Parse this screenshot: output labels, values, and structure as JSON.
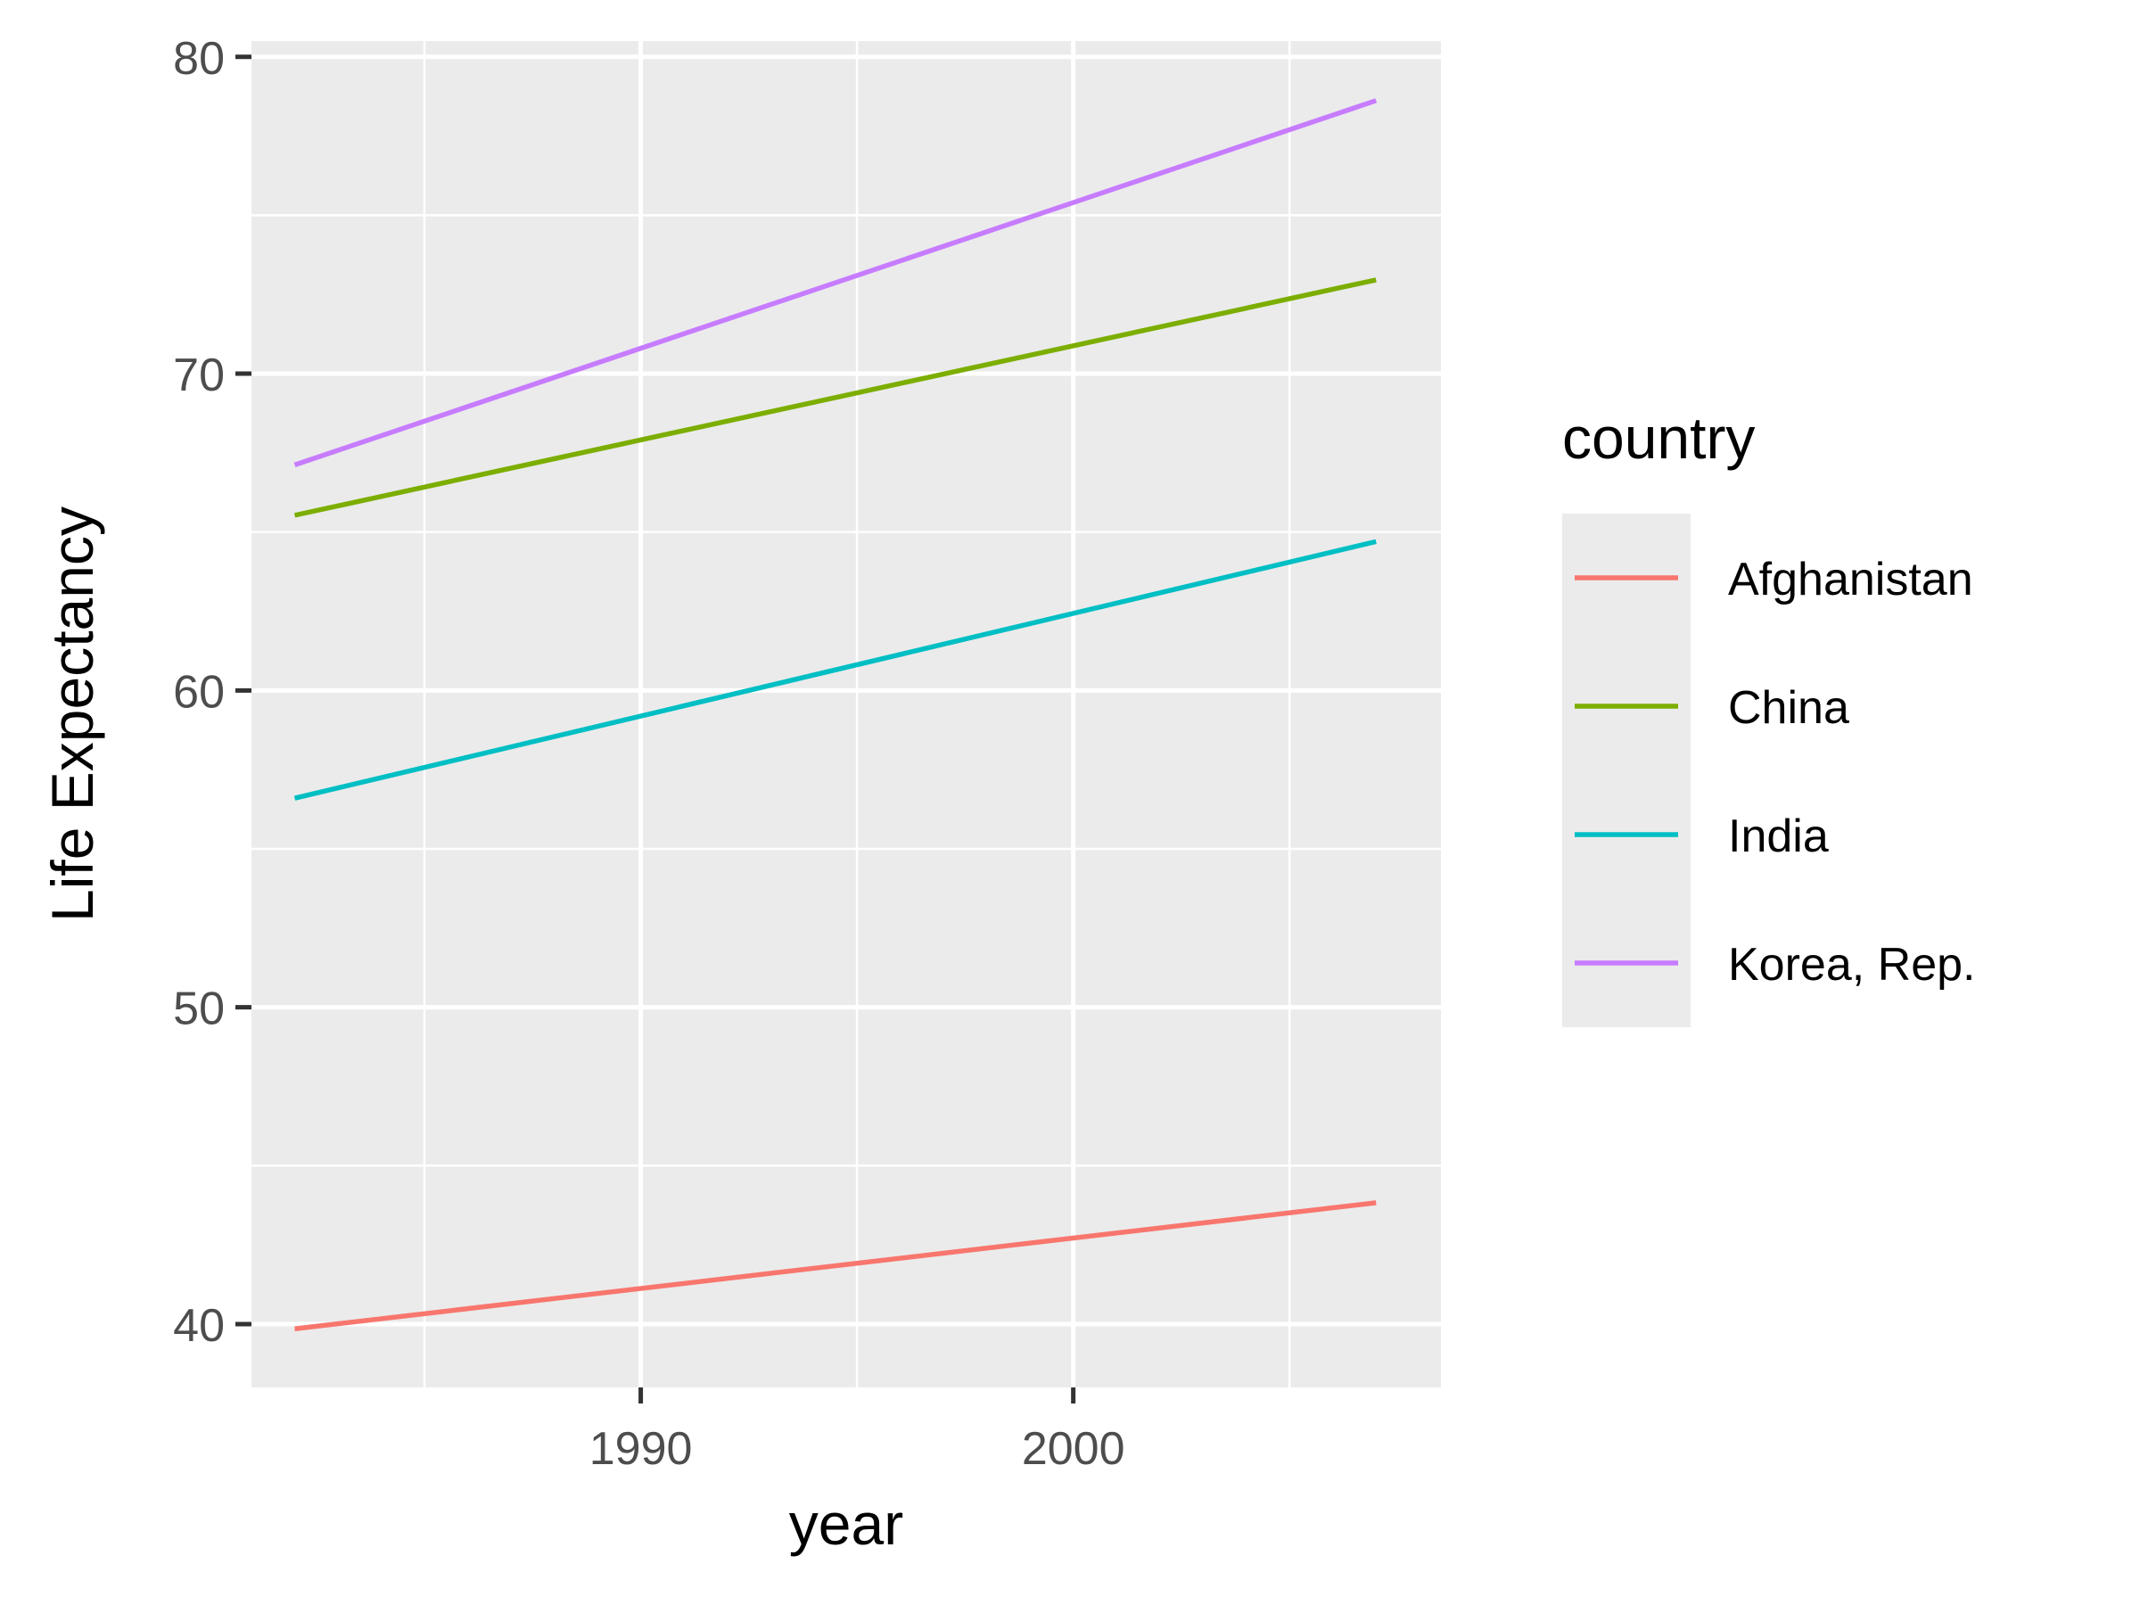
{
  "chart_data": {
    "type": "line",
    "xlabel": "year",
    "ylabel": "Life Expectancy",
    "xlim": [
      1981,
      2008.5
    ],
    "ylim": [
      38,
      80.5
    ],
    "x_ticks": [
      1990,
      2000
    ],
    "x_tick_labels": [
      "1990",
      "2000"
    ],
    "y_ticks": [
      40,
      50,
      60,
      70,
      80
    ],
    "y_tick_labels": [
      "40",
      "50",
      "60",
      "70",
      "80"
    ],
    "grid": true,
    "legend": {
      "title": "country",
      "position": "right"
    },
    "x": [
      1982,
      2007
    ],
    "series": [
      {
        "name": "Afghanistan",
        "values": [
          39.85,
          43.83
        ],
        "color": "#F8766D"
      },
      {
        "name": "China",
        "values": [
          65.53,
          72.96
        ],
        "color": "#7CAE00"
      },
      {
        "name": "India",
        "values": [
          56.6,
          64.7
        ],
        "color": "#00BFC4"
      },
      {
        "name": "Korea, Rep.",
        "values": [
          67.12,
          78.62
        ],
        "color": "#C77CFF"
      }
    ]
  }
}
